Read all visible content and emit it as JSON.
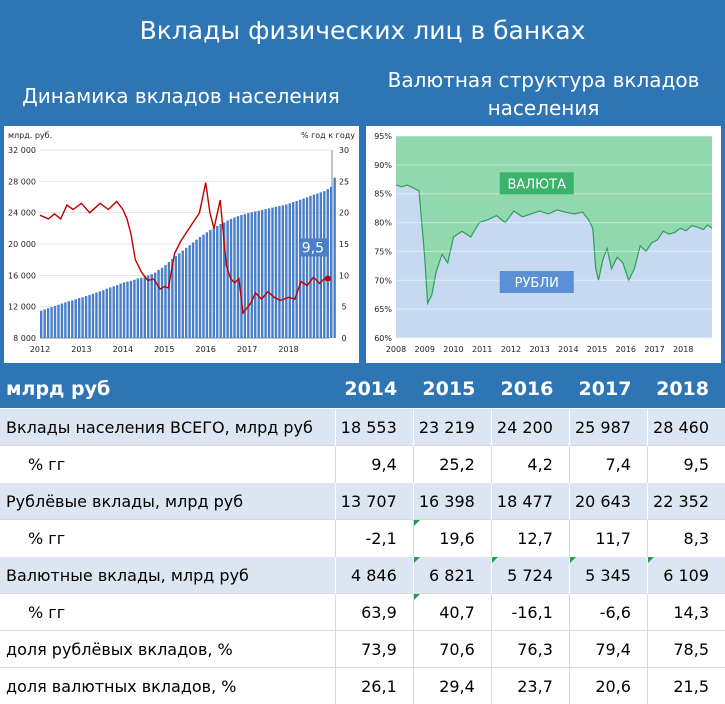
{
  "title": "Вклады физических лиц в банках",
  "left_title": "Динамика вкладов населения",
  "right_title": "Валютная структура вкладов населения",
  "colors": {
    "bars": "#4A7FC8",
    "line": "#C00000",
    "rub_area": "#C6D9F1",
    "fx_area": "#92D8AE",
    "header_bg": "#2E75B6",
    "band": "#DCE6F2"
  },
  "chart_data": [
    {
      "type": "bar",
      "title": "Динамика вкладов населения",
      "ylabel_left": "млрд. руб.",
      "ylabel_right": "% год к году",
      "ylim": [
        8000,
        32000
      ],
      "y2lim": [
        0,
        30
      ],
      "yticks": [
        "8 000",
        "12 000",
        "16 000",
        "20 000",
        "24 000",
        "28 000",
        "32 000"
      ],
      "y2ticks": [
        "0",
        "5",
        "10",
        "15",
        "20",
        "25",
        "30"
      ],
      "xticks": [
        "2012",
        "2013",
        "2014",
        "2015",
        "2016",
        "2017",
        "2018"
      ],
      "x_range": [
        2012,
        2019
      ],
      "annotation": "9,5",
      "series": [
        {
          "name": "bars",
          "type": "bar",
          "start": 2012,
          "step": 0.08333,
          "values": [
            11500,
            11650,
            11800,
            11950,
            12100,
            12250,
            12400,
            12550,
            12700,
            12800,
            12950,
            13100,
            13200,
            13350,
            13500,
            13650,
            13800,
            13950,
            14100,
            14300,
            14450,
            14600,
            14750,
            14950,
            15100,
            15200,
            15300,
            15450,
            15600,
            15700,
            15900,
            16000,
            16150,
            16350,
            16700,
            16950,
            17300,
            17700,
            18100,
            18450,
            18800,
            19150,
            19500,
            19850,
            20200,
            20550,
            20900,
            21200,
            21500,
            21800,
            22100,
            22300,
            22550,
            22750,
            23000,
            23200,
            23400,
            23550,
            23700,
            23800,
            23950,
            24050,
            24150,
            24250,
            24350,
            24450,
            24550,
            24650,
            24750,
            24850,
            24950,
            25050,
            25200,
            25350,
            25500,
            25650,
            25800,
            25950,
            26150,
            26300,
            26450,
            26600,
            26750,
            27000,
            27300,
            28460
          ]
        },
        {
          "name": "line",
          "type": "line",
          "x": [
            2012.0,
            2012.2,
            2012.35,
            2012.5,
            2012.65,
            2012.8,
            2013.0,
            2013.2,
            2013.45,
            2013.65,
            2013.85,
            2014.0,
            2014.1,
            2014.2,
            2014.3,
            2014.45,
            2014.6,
            2014.75,
            2014.9,
            2015.0,
            2015.1,
            2015.25,
            2015.4,
            2015.55,
            2015.7,
            2015.85,
            2016.0,
            2016.1,
            2016.2,
            2016.35,
            2016.5,
            2016.6,
            2016.7,
            2016.8,
            2016.9,
            2017.0,
            2017.1,
            2017.2,
            2017.35,
            2017.5,
            2017.65,
            2017.8,
            2018.0,
            2018.15,
            2018.3,
            2018.45,
            2018.6,
            2018.75,
            2018.85,
            2018.95
          ],
          "values": [
            19.6,
            19.0,
            19.8,
            19.0,
            21.2,
            20.5,
            21.5,
            20.0,
            21.5,
            20.5,
            21.8,
            20.5,
            19.0,
            16.5,
            12.5,
            10.5,
            9.2,
            9.4,
            7.8,
            8.2,
            8.0,
            13.5,
            15.5,
            17.0,
            18.5,
            20.0,
            24.8,
            20.0,
            17.5,
            22.0,
            11.5,
            9.5,
            8.8,
            9.5,
            4.0,
            4.8,
            5.7,
            7.2,
            6.2,
            7.4,
            6.5,
            6.0,
            6.5,
            6.2,
            9.0,
            8.4,
            9.7,
            8.7,
            9.4,
            9.5
          ]
        }
      ]
    },
    {
      "type": "area",
      "title": "Валютная структура вкладов населения",
      "ylim": [
        60,
        95
      ],
      "yticks": [
        "60%",
        "65%",
        "70%",
        "75%",
        "80%",
        "85%",
        "90%",
        "95%"
      ],
      "xticks": [
        "2008",
        "2009",
        "2010",
        "2011",
        "2012",
        "2013",
        "2014",
        "2015",
        "2016",
        "2017",
        "2018"
      ],
      "x_range": [
        2008,
        2019
      ],
      "series": [
        {
          "name": "ВАЛЮТА",
          "fill": "#92D8AE"
        },
        {
          "name": "РУБЛИ",
          "fill": "#C6D9F1",
          "x": [
            2008.0,
            2008.2,
            2008.4,
            2008.6,
            2008.8,
            2009.0,
            2009.1,
            2009.25,
            2009.4,
            2009.6,
            2009.8,
            2010.0,
            2010.3,
            2010.6,
            2010.9,
            2011.2,
            2011.5,
            2011.8,
            2012.1,
            2012.4,
            2012.7,
            2013.0,
            2013.3,
            2013.6,
            2013.9,
            2014.2,
            2014.5,
            2014.7,
            2014.85,
            2014.95,
            2015.05,
            2015.2,
            2015.35,
            2015.5,
            2015.7,
            2015.9,
            2016.1,
            2016.3,
            2016.5,
            2016.7,
            2016.9,
            2017.1,
            2017.3,
            2017.5,
            2017.7,
            2017.9,
            2018.1,
            2018.3,
            2018.5,
            2018.7,
            2018.85,
            2019.0
          ],
          "values": [
            86.5,
            86.2,
            86.5,
            86.0,
            85.5,
            74.0,
            66.0,
            67.5,
            71.5,
            74.5,
            73.0,
            77.5,
            78.5,
            77.5,
            80.0,
            80.5,
            81.2,
            80.0,
            82.0,
            81.0,
            81.5,
            82.0,
            81.5,
            82.2,
            81.8,
            81.5,
            81.8,
            80.5,
            79.0,
            72.0,
            70.0,
            73.5,
            75.5,
            72.0,
            74.0,
            73.0,
            70.0,
            72.0,
            76.0,
            75.0,
            76.5,
            77.0,
            78.5,
            78.0,
            78.3,
            79.0,
            78.6,
            79.5,
            79.2,
            78.8,
            79.6,
            79.0
          ]
        }
      ]
    }
  ],
  "table": {
    "header": [
      "млрд руб",
      "2014",
      "2015",
      "2016",
      "2017",
      "2018"
    ],
    "rows": [
      {
        "label": "Вклады населения ВСЕГО, млрд руб",
        "values": [
          "18 553",
          "23 219",
          "24 200",
          "25 987",
          "28 460"
        ]
      },
      {
        "label": "% гг",
        "values": [
          "9,4",
          "25,2",
          "4,2",
          "7,4",
          "9,5"
        ]
      },
      {
        "label": "Рублёвые вклады, млрд руб",
        "values": [
          "13 707",
          "16 398",
          "18 477",
          "20 643",
          "22 352"
        ]
      },
      {
        "label": "% гг",
        "values": [
          "-2,1",
          "19,6",
          "12,7",
          "11,7",
          "8,3"
        ]
      },
      {
        "label": "Валютные вклады, млрд руб",
        "values": [
          "4 846",
          "6 821",
          "5 724",
          "5 345",
          "6 109"
        ]
      },
      {
        "label": "% гг",
        "values": [
          "63,9",
          "40,7",
          "-16,1",
          "-6,6",
          "14,3"
        ]
      },
      {
        "label": "доля рублёвых вкладов, %",
        "values": [
          "73,9",
          "70,6",
          "76,3",
          "79,4",
          "78,5"
        ]
      },
      {
        "label": "доля валютных вкладов, %",
        "values": [
          "26,1",
          "29,4",
          "23,7",
          "20,6",
          "21,5"
        ]
      }
    ]
  }
}
